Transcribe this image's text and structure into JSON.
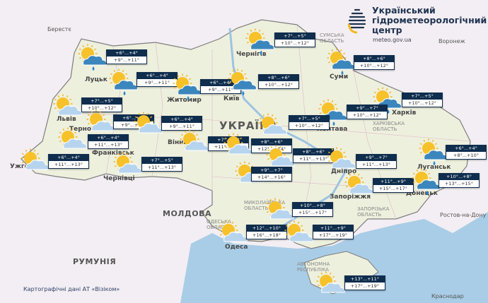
{
  "logo": {
    "title_lines": [
      "Український",
      "гідрометеорологічний",
      "центр"
    ],
    "url": "meteo.gov.ua"
  },
  "credit": "Картографічні дані АТ «Візіком»",
  "colors": {
    "night_box": "#0f2d4d",
    "day_box": "#ffffff",
    "land": "#eef0e0",
    "sea": "#a9cde6",
    "background": "#f3eef3"
  },
  "labels": {
    "country_ukraine": "УКРАЇНА",
    "country_moldova": "МОЛДОВА",
    "country_romania": "РУМУНІЯ",
    "berestia": "Берестє",
    "voronezh": "Воронеж",
    "rostov": "Ростов-на-Дону",
    "krasnodar": "Краснодар",
    "sumy_oblast": "СУМСЬКА ОБЛАСТЬ",
    "kharkiv_oblast": "ХАРКІВСЬКА ОБЛАСТЬ",
    "mykolaiv_oblast": "МИКОЛАЇВСЬКА ОБЛАСТЬ",
    "odesa_oblast": "ОДЕСЬКА ОБЛАСТЬ",
    "zaporizhzhia_oblast": "ЗАПОРІЗЬКА ОБЛАСТЬ",
    "crimea": "АВТОНОМНА РЕСПУБЛІКА",
    "cities": {
      "lutsk": "Луцьк",
      "zhytomyr": "Житомир",
      "kyiv": "Київ",
      "chernihiv": "Чернігів",
      "sumy": "Суми",
      "poltava": "Полтава",
      "kharkiv": "Харків",
      "lviv": "Львів",
      "ternopil": "Тернопіль",
      "ivano_frankivsk": "Франківськ",
      "uzhhorod": "Ужгород",
      "chernivtsi": "Чернівці",
      "vinnytsia": "Вінниця",
      "dnipro": "Дніпро",
      "zaporizhzhia": "Запоріжжя",
      "luhansk": "Луганськ",
      "donetsk": "Донецьк",
      "odesa": "Одеса"
    }
  },
  "stations": [
    {
      "id": "volyn",
      "icon": "partly-cloudy-rain",
      "night": "+6°...+4°",
      "day": "+9°...+11°"
    },
    {
      "id": "rivne",
      "icon": "partly-cloudy-rain",
      "night": "+6°...+4°",
      "day": "+9°...+11°"
    },
    {
      "id": "zhytomyr",
      "icon": "partly-cloudy-rain",
      "night": "+6°...+4°",
      "day": "+9°...+11°"
    },
    {
      "id": "chernihiv",
      "icon": "partly-cloudy-rain",
      "night": "+7°...+5°",
      "day": "+10°...+12°"
    },
    {
      "id": "kyiv",
      "icon": "partly-cloudy-rain",
      "night": "+8°...+6°",
      "day": "+10°...+12°"
    },
    {
      "id": "sumy",
      "icon": "partly-cloudy-rain",
      "night": "+8°...+6°",
      "day": "+10°...+12°"
    },
    {
      "id": "kharkiv",
      "icon": "partly-cloudy-rain",
      "night": "+7°...+5°",
      "day": "+10°...+12°"
    },
    {
      "id": "poltava",
      "icon": "partly-cloudy-rain",
      "night": "+9°...+7°",
      "day": "+10°...+12°"
    },
    {
      "id": "lviv",
      "icon": "partly-cloudy",
      "night": "+7°...+5°",
      "day": "+10°...+12°"
    },
    {
      "id": "ternopil",
      "icon": "partly-cloudy",
      "night": "+6°...+4°",
      "day": "+9°...+11°"
    },
    {
      "id": "khmelnytskyi",
      "icon": "partly-cloudy",
      "night": "+6°...+4°",
      "day": "+9°...+11°"
    },
    {
      "id": "ivano-frankivsk",
      "icon": "partly-cloudy",
      "night": "+6°...+4°",
      "day": "+11°...+13°"
    },
    {
      "id": "uzhhorod",
      "icon": "partly-cloudy",
      "night": "+6°...+4°",
      "day": "+11°...+13°"
    },
    {
      "id": "chernivtsi",
      "icon": "partly-cloudy",
      "night": "+7°...+5°",
      "day": "+11°...+13°"
    },
    {
      "id": "vinnytsia",
      "icon": "partly-cloudy",
      "night": "+7°...+5°",
      "day": "+11°...+13°"
    },
    {
      "id": "cherkasy",
      "icon": "partly-cloudy",
      "night": "+7°...+5°",
      "day": "+10°...+12°"
    },
    {
      "id": "uman",
      "icon": "partly-cloudy",
      "night": "+8°...+6°",
      "day": "+12°...+14°"
    },
    {
      "id": "kropyvnytskyi",
      "icon": "partly-cloudy",
      "night": "+8°...+6°",
      "day": "+11°...+13°"
    },
    {
      "id": "south-center",
      "icon": "partly-cloudy",
      "night": "+9°...+7°",
      "day": "+14°...+16°"
    },
    {
      "id": "dnipro",
      "icon": "partly-cloudy",
      "night": "+9°...+7°",
      "day": "+11°...+13°"
    },
    {
      "id": "zaporizhzhia",
      "icon": "partly-cloudy",
      "night": "+11°...+9°",
      "day": "+15°...+17°"
    },
    {
      "id": "luhansk",
      "icon": "partly-cloudy-rain",
      "night": "+6°...+4°",
      "day": "+8°...+10°"
    },
    {
      "id": "donetsk",
      "icon": "partly-cloudy-rain",
      "night": "+10°...+8°",
      "day": "+13°...+15°"
    },
    {
      "id": "mykolaiv",
      "icon": "partly-cloudy",
      "night": "+10°...+8°",
      "day": "+15°...+17°"
    },
    {
      "id": "odesa",
      "icon": "partly-cloudy",
      "night": "+12°...+10°",
      "day": "+16°...+18°"
    },
    {
      "id": "kherson",
      "icon": "partly-cloudy",
      "night": "+11°...+9°",
      "day": "+17°...+19°"
    },
    {
      "id": "crimea",
      "icon": "partly-cloudy",
      "night": "+13°...+11°",
      "day": "+17°...+19°"
    }
  ]
}
